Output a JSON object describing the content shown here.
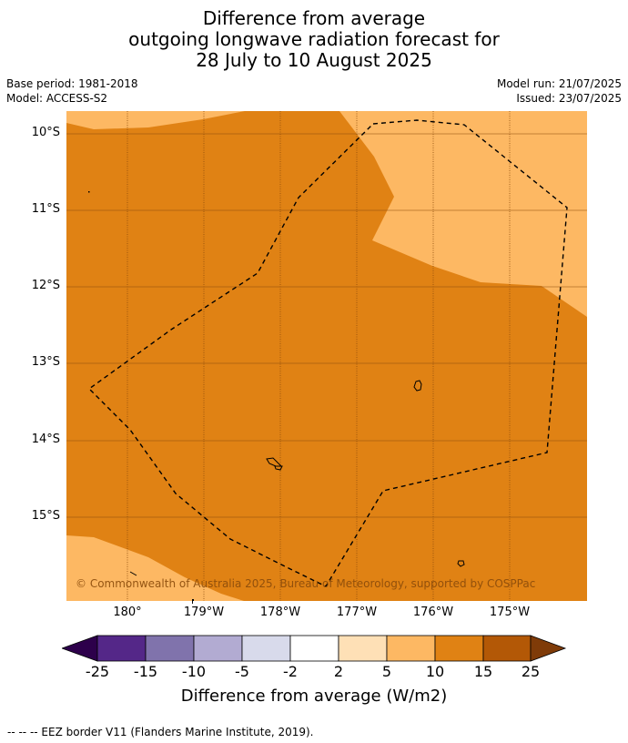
{
  "title": {
    "line1": "Difference from average",
    "line2": "outgoing longwave radiation forecast for",
    "line3": "28 July to 10 August 2025"
  },
  "meta": {
    "base_period": "Base period: 1981-2018",
    "model": "Model: ACCESS-S2",
    "model_run": "Model run: 21/07/2025",
    "issued": "Issued: 23/07/2025"
  },
  "map": {
    "lat_labels": [
      "10°S",
      "11°S",
      "12°S",
      "13°S",
      "14°S",
      "15°S"
    ],
    "lon_labels": [
      "180°",
      "179°W",
      "178°W",
      "177°W",
      "176°W",
      "175°W"
    ],
    "copyright": "© Commonwealth of Australia 2025, Bureau of Meteorology, supported by COSPPac",
    "colors": {
      "band_10_15": "#e08214",
      "band_5_10": "#fdb863",
      "gridline": "#8a4a0a",
      "eez_border": "#000000"
    }
  },
  "colorbar": {
    "ticks": [
      "-25",
      "-15",
      "-10",
      "-5",
      "-2",
      "2",
      "5",
      "10",
      "15",
      "25"
    ],
    "colors": [
      "#2d004b",
      "#542788",
      "#8073ac",
      "#b2abd2",
      "#d8daeb",
      "#ffffff",
      "#fee0b6",
      "#fdb863",
      "#e08214",
      "#b35806",
      "#7f3b08"
    ],
    "label": "Difference from average (W/m2)"
  },
  "footer": "--  --  -- EEZ border V11 (Flanders Marine Institute, 2019)."
}
